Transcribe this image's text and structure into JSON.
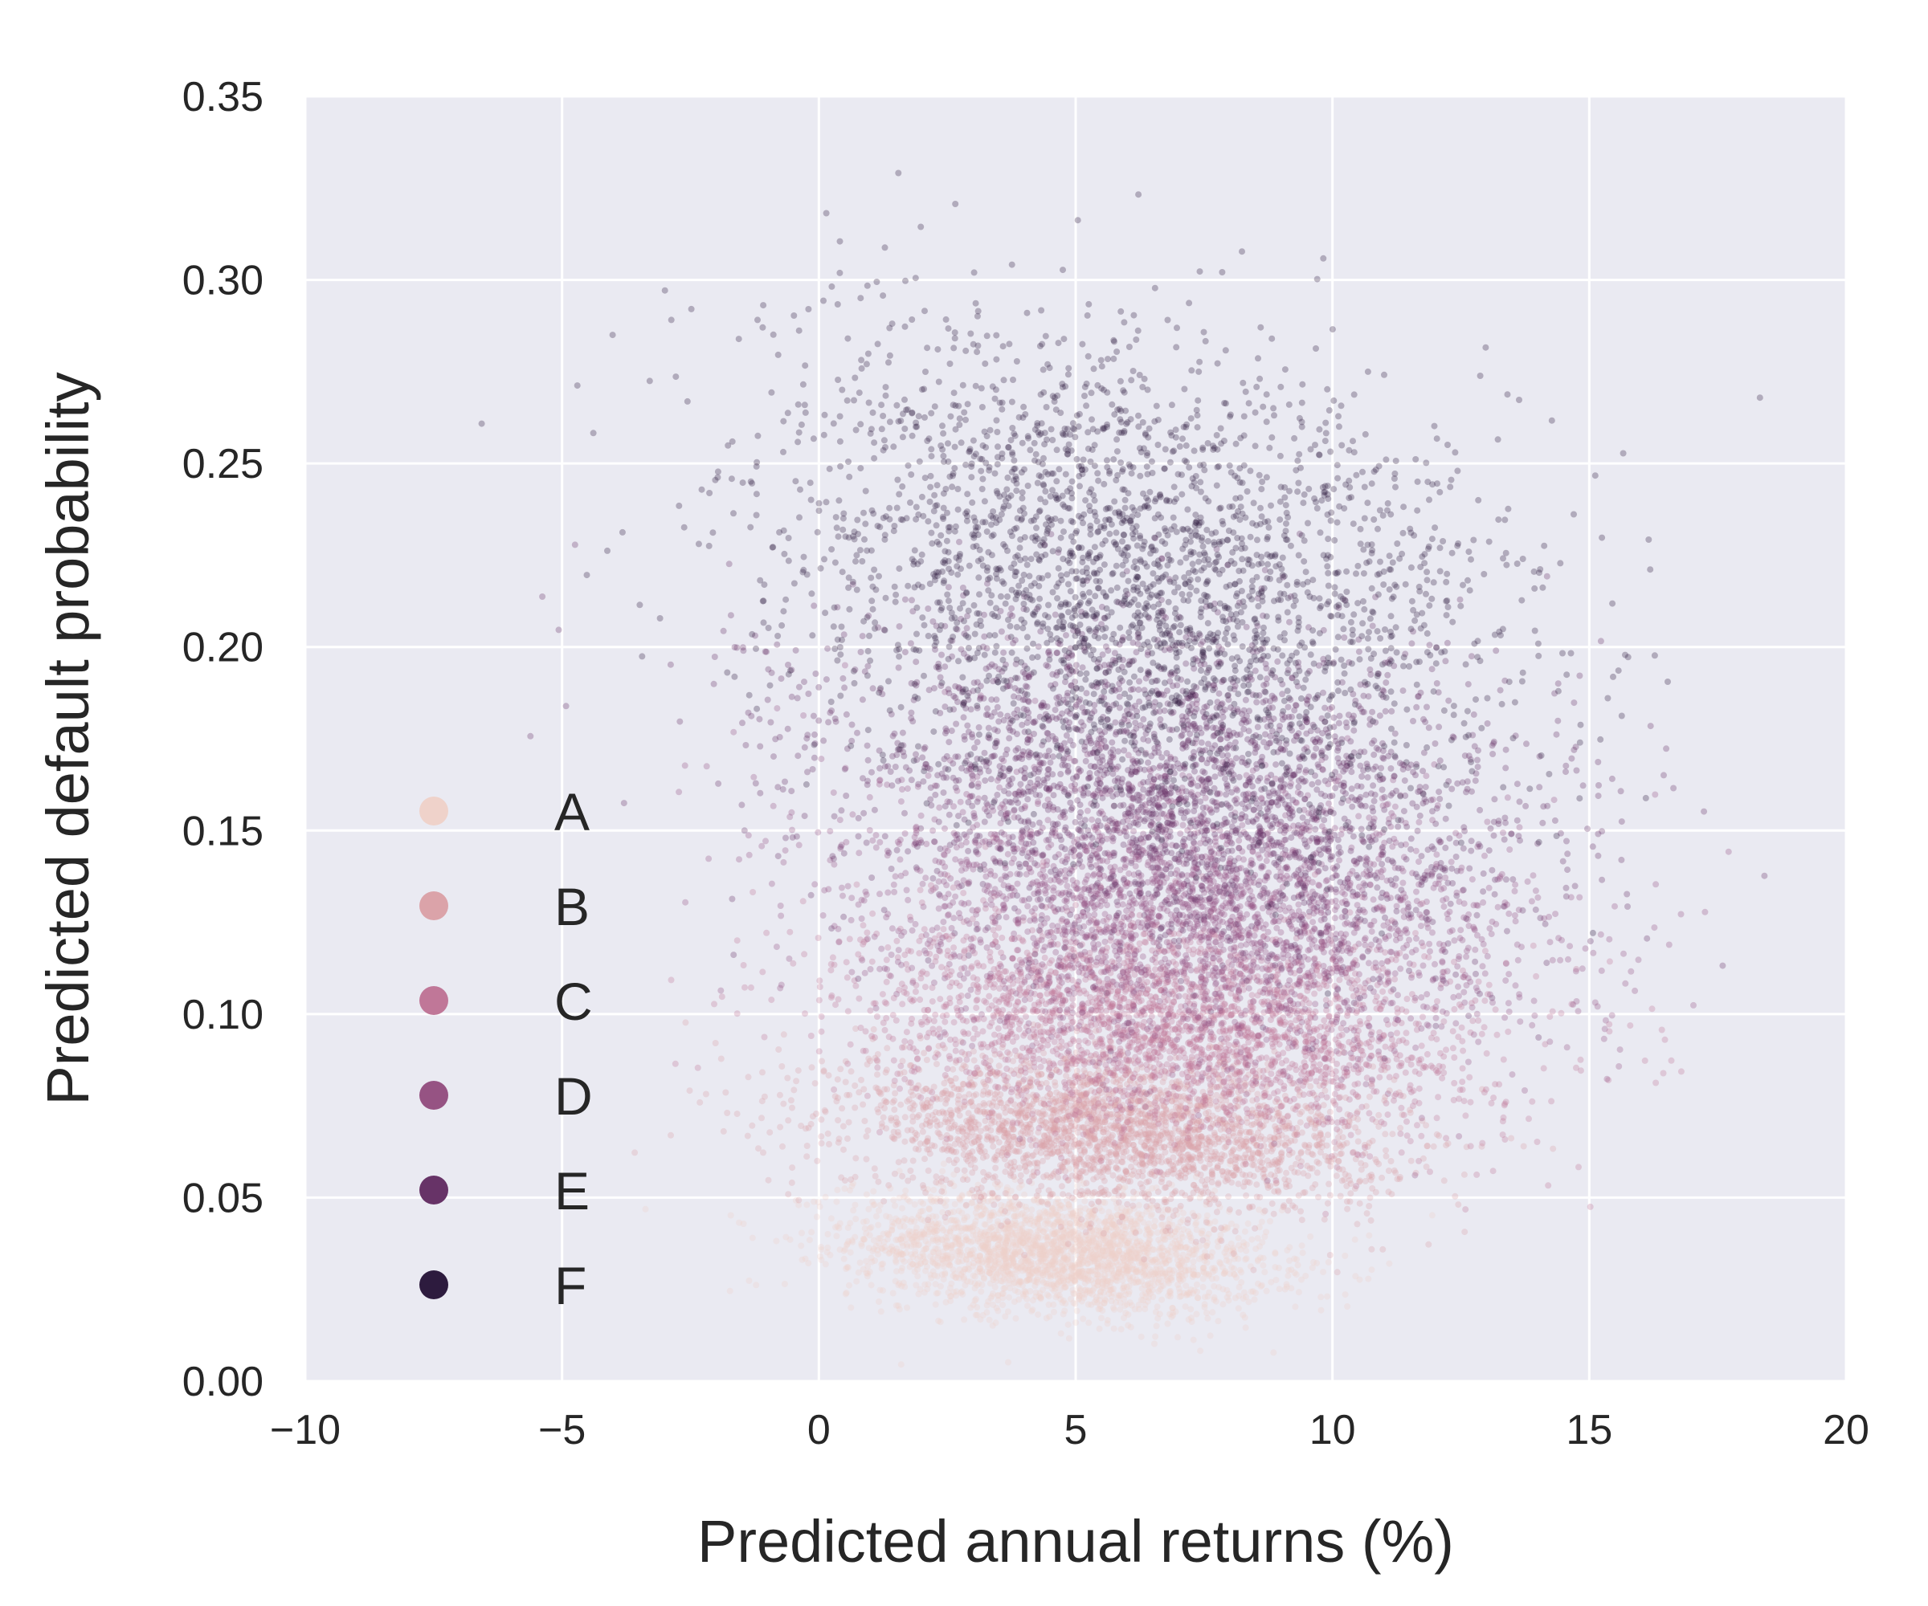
{
  "chart_data": {
    "type": "scatter",
    "title": "",
    "xlabel": "Predicted annual returns (%)",
    "ylabel": "Predicted default probability",
    "xlim": [
      -10,
      20
    ],
    "ylim": [
      0.0,
      0.35
    ],
    "xticks": [
      -10,
      -5,
      0,
      5,
      10,
      15,
      20
    ],
    "xtick_labels": [
      "−10",
      "−5",
      "0",
      "5",
      "10",
      "15",
      "20"
    ],
    "yticks": [
      0.0,
      0.05,
      0.1,
      0.15,
      0.2,
      0.25,
      0.3,
      0.35
    ],
    "ytick_labels": [
      "0.00",
      "0.05",
      "0.10",
      "0.15",
      "0.20",
      "0.25",
      "0.30",
      "0.35"
    ],
    "grid": true,
    "background": "#eaeaf2",
    "grid_color": "#ffffff",
    "legend_position": "lower-left",
    "point_alpha": 0.3,
    "series": [
      {
        "name": "A",
        "color": "#efd2ca",
        "x_center": 4.7,
        "x_spread": 2.0,
        "y_center": 0.035,
        "y_spread": 0.008
      },
      {
        "name": "B",
        "color": "#dba3a9",
        "x_center": 5.8,
        "x_spread": 2.6,
        "y_center": 0.068,
        "y_spread": 0.01
      },
      {
        "name": "C",
        "color": "#c07798",
        "x_center": 6.9,
        "x_spread": 3.0,
        "y_center": 0.097,
        "y_spread": 0.014
      },
      {
        "name": "D",
        "color": "#965383",
        "x_center": 7.4,
        "x_spread": 3.2,
        "y_center": 0.128,
        "y_spread": 0.018
      },
      {
        "name": "E",
        "color": "#673367",
        "x_center": 7.0,
        "x_spread": 3.4,
        "y_center": 0.163,
        "y_spread": 0.022
      },
      {
        "name": "F",
        "color": "#2d1b3e",
        "x_center": 6.2,
        "x_spread": 3.6,
        "y_center": 0.222,
        "y_spread": 0.03
      }
    ]
  }
}
